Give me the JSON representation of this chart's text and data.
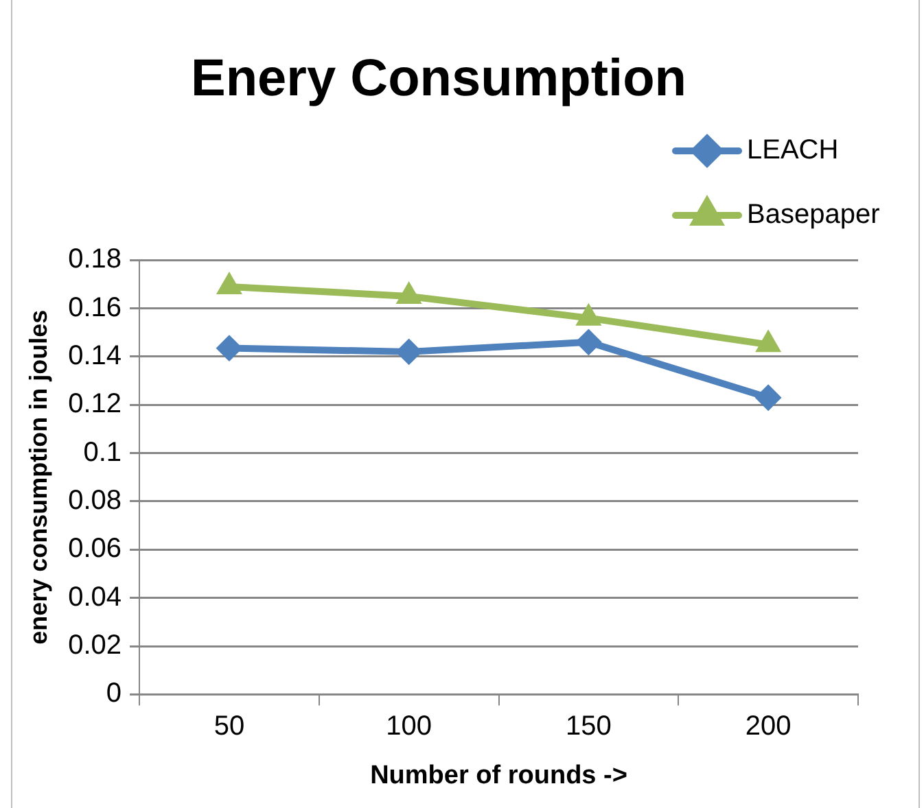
{
  "chart_data": {
    "type": "line",
    "title": "Enery Consumption",
    "xlabel": "Number of rounds ->",
    "ylabel": "enery consumption in joules",
    "categories": [
      "50",
      "100",
      "150",
      "200"
    ],
    "series": [
      {
        "name": "LEACH",
        "color": "#4f81bd",
        "marker": "diamond",
        "values": [
          0.1435,
          0.142,
          0.146,
          0.123
        ]
      },
      {
        "name": "Basepaper",
        "color": "#9bbb59",
        "marker": "triangle",
        "values": [
          0.169,
          0.165,
          0.156,
          0.145
        ]
      }
    ],
    "ylim": [
      0,
      0.18
    ],
    "yticks": [
      0,
      0.02,
      0.04,
      0.06,
      0.08,
      0.1,
      0.12,
      0.14,
      0.16,
      0.18
    ],
    "grid": "y",
    "legend": "top right",
    "line_style": "solid"
  }
}
